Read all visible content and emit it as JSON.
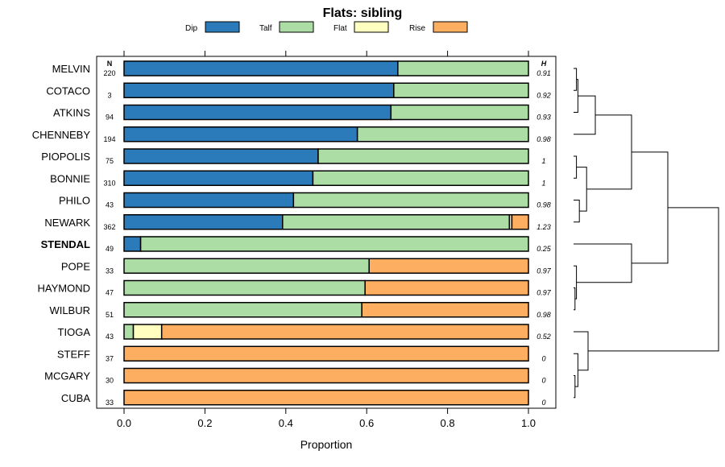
{
  "chart_data": {
    "type": "bar",
    "orientation": "horizontal",
    "stacked": true,
    "title": "Flats: sibling",
    "xlabel": "Proportion",
    "ylabel": "",
    "xlim": [
      0,
      1
    ],
    "x_ticks": [
      "0.0",
      "0.2",
      "0.4",
      "0.6",
      "0.8",
      "1.0"
    ],
    "x_tick_values": [
      0,
      0.2,
      0.4,
      0.6,
      0.8,
      1.0
    ],
    "legend": {
      "placement": "top",
      "entries": [
        {
          "name": "Dip",
          "color": "#2b7bba"
        },
        {
          "name": "Talf",
          "color": "#abdda4"
        },
        {
          "name": "Flat",
          "color": "#ffffbf"
        },
        {
          "name": "Rise",
          "color": "#fdae61"
        }
      ]
    },
    "n_header": "N",
    "h_header": "H",
    "highlighted_category": "STENDAL",
    "categories": [
      "MELVIN",
      "COTACO",
      "ATKINS",
      "CHENNEBY",
      "PIOPOLIS",
      "BONNIE",
      "PHILO",
      "NEWARK",
      "STENDAL",
      "POPE",
      "HAYMOND",
      "WILBUR",
      "TIOGA",
      "STEFF",
      "MCGARY",
      "CUBA"
    ],
    "n_values": [
      "220",
      "3",
      "94",
      "194",
      "75",
      "310",
      "43",
      "362",
      "49",
      "33",
      "47",
      "51",
      "43",
      "37",
      "30",
      "33"
    ],
    "h_values": [
      "0.91",
      "0.92",
      "0.93",
      "0.98",
      "1",
      "1",
      "0.98",
      "1.23",
      "0.25",
      "0.97",
      "0.97",
      "0.98",
      "0.52",
      "0",
      "0",
      "0"
    ],
    "series": [
      {
        "name": "Dip",
        "values": [
          0.677,
          0.667,
          0.66,
          0.577,
          0.48,
          0.467,
          0.419,
          0.392,
          0.041,
          0,
          0,
          0,
          0,
          0,
          0,
          0
        ]
      },
      {
        "name": "Talf",
        "values": [
          0.323,
          0.333,
          0.34,
          0.423,
          0.52,
          0.533,
          0.581,
          0.561,
          0.959,
          0.606,
          0.596,
          0.588,
          0.023,
          0,
          0,
          0
        ]
      },
      {
        "name": "Flat",
        "values": [
          0,
          0,
          0,
          0,
          0,
          0,
          0,
          0.006,
          0,
          0,
          0,
          0,
          0.07,
          0,
          0,
          0
        ]
      },
      {
        "name": "Rise",
        "values": [
          0,
          0,
          0,
          0,
          0,
          0,
          0,
          0.041,
          0,
          0.394,
          0.404,
          0.412,
          0.907,
          1,
          1,
          1
        ]
      }
    ],
    "dendrogram": {
      "leaf_order": [
        "MELVIN",
        "COTACO",
        "ATKINS",
        "CHENNEBY",
        "PIOPOLIS",
        "BONNIE",
        "PHILO",
        "NEWARK",
        "STENDAL",
        "POPE",
        "HAYMOND",
        "WILBUR",
        "TIOGA",
        "STEFF",
        "MCGARY",
        "CUBA"
      ],
      "merges": [
        {
          "a": 0,
          "b": 1,
          "height": 0.02
        },
        {
          "a": -1,
          "b": 2,
          "height": 0.03
        },
        {
          "a": -2,
          "b": 3,
          "height": 0.15
        },
        {
          "a": 4,
          "b": 5,
          "height": 0.02
        },
        {
          "a": 6,
          "b": 7,
          "height": 0.04
        },
        {
          "a": -4,
          "b": -5,
          "height": 0.09
        },
        {
          "a": -3,
          "b": -6,
          "height": 0.4
        },
        {
          "a": 10,
          "b": 11,
          "height": 0.01
        },
        {
          "a": 9,
          "b": -8,
          "height": 0.02
        },
        {
          "a": 8,
          "b": -9,
          "height": 0.4
        },
        {
          "a": -7,
          "b": -10,
          "height": 0.65
        },
        {
          "a": 14,
          "b": 15,
          "height": 0.01
        },
        {
          "a": 13,
          "b": -12,
          "height": 0.03
        },
        {
          "a": 12,
          "b": -13,
          "height": 0.1
        },
        {
          "a": -11,
          "b": -14,
          "height": 1.0
        }
      ]
    }
  }
}
